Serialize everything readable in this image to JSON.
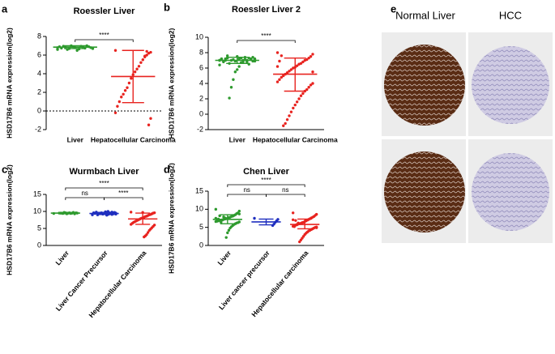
{
  "chart_data": [
    {
      "type": "strip",
      "label": "a",
      "title": "Roessler Liver",
      "ylabel": "HSD17B6 mRNA expression(log2)",
      "ylim": [
        -2,
        8
      ],
      "yticks": [
        -2,
        0,
        2,
        4,
        6,
        8
      ],
      "hline": 0,
      "rotate_labels": false,
      "categories": [
        "Liver",
        "Hepatocellular Carcinoma"
      ],
      "groups": [
        {
          "color": "#2e9a2e",
          "mean": 6.85,
          "error": [
            6.7,
            7.0
          ],
          "values": [
            6.6,
            6.7,
            6.8,
            6.9,
            7.0,
            6.75,
            6.85,
            6.95,
            6.65,
            6.5,
            6.8,
            6.9,
            7.0,
            6.7,
            6.6,
            6.85,
            6.95,
            6.75,
            6.9,
            6.8
          ]
        },
        {
          "color": "#e8231f",
          "mean": 3.7,
          "error": [
            0.9,
            6.5
          ],
          "values": [
            6.5,
            6.3,
            6.2,
            6.0,
            5.9,
            5.5,
            5.2,
            4.8,
            4.5,
            4.2,
            3.9,
            3.5,
            3.0,
            2.5,
            2.2,
            1.8,
            1.5,
            1.0,
            0.5,
            -0.2,
            -0.8,
            -1.5,
            6.4,
            5.8
          ]
        }
      ],
      "comparisons": [
        {
          "between": [
            0,
            1
          ],
          "label": "****"
        }
      ]
    },
    {
      "type": "strip",
      "label": "b",
      "title": "Roessler Liver 2",
      "ylabel": "HSD17B6 mRNA expression(log2)",
      "ylim": [
        -2,
        10
      ],
      "yticks": [
        -2,
        0,
        2,
        4,
        6,
        8,
        10
      ],
      "rotate_labels": false,
      "categories": [
        "Liver",
        "Hepatocellular Carcinoma"
      ],
      "groups": [
        {
          "color": "#2e9a2e",
          "mean": 7.0,
          "error": [
            6.6,
            7.4
          ],
          "values": [
            7.0,
            7.2,
            6.9,
            7.1,
            7.3,
            6.8,
            7.4,
            7.0,
            6.7,
            7.2,
            7.5,
            6.9,
            7.1,
            7.0,
            6.6,
            7.3,
            7.2,
            6.8,
            7.1,
            7.0,
            6.9,
            7.4,
            7.2,
            6.5,
            7.0,
            7.1,
            6.8,
            7.3,
            6.2,
            5.8,
            5.5,
            4.5,
            3.5,
            2.1,
            7.6,
            7.0,
            6.9,
            7.2,
            6.4,
            7.1
          ]
        },
        {
          "color": "#e8231f",
          "mean": 5.2,
          "error": [
            3.0,
            7.3
          ],
          "values": [
            8.0,
            7.8,
            7.5,
            7.3,
            7.1,
            7.0,
            6.8,
            6.6,
            6.5,
            6.3,
            6.1,
            6.0,
            5.8,
            5.6,
            5.4,
            5.2,
            5.0,
            4.8,
            4.5,
            4.2,
            4.0,
            3.8,
            3.5,
            3.2,
            3.0,
            2.7,
            2.4,
            2.0,
            1.6,
            1.2,
            0.8,
            0.3,
            -0.2,
            -0.7,
            -1.2,
            -1.5,
            7.6,
            6.9,
            6.2,
            5.5
          ]
        }
      ],
      "comparisons": [
        {
          "between": [
            0,
            1
          ],
          "label": "****"
        }
      ]
    },
    {
      "type": "strip",
      "label": "c",
      "title": "Wurmbach Liver",
      "ylabel": "HSD17B6 mRNA expression(log2)",
      "ylim": [
        0,
        15
      ],
      "yticks": [
        0,
        5,
        10,
        15
      ],
      "rotate_labels": true,
      "categories": [
        "Liver",
        "Liver Cancer Precursor",
        "Hepatocellular Carcinoma"
      ],
      "groups": [
        {
          "color": "#2e9a2e",
          "mean": 9.5,
          "error": [
            9.3,
            9.7
          ],
          "values": [
            9.4,
            9.5,
            9.6,
            9.3,
            9.7,
            9.5,
            9.4,
            9.6,
            9.5,
            9.3,
            9.6,
            9.7,
            9.4,
            9.5,
            9.5
          ]
        },
        {
          "color": "#1f2fbf",
          "mean": 9.4,
          "error": [
            9.1,
            9.7
          ],
          "values": [
            9.0,
            9.2,
            9.4,
            9.6,
            9.8,
            9.5,
            9.3,
            9.1,
            9.7,
            9.9,
            9.4,
            9.2,
            9.6,
            9.5,
            9.3,
            9.0,
            9.8,
            9.4,
            9.6,
            9.2,
            9.5,
            9.7,
            9.3,
            9.1,
            9.4,
            9.6,
            10.0,
            8.9,
            9.5,
            9.4
          ]
        },
        {
          "color": "#e8231f",
          "mean": 7.8,
          "error": [
            6.2,
            9.5
          ],
          "values": [
            9.8,
            9.6,
            9.5,
            9.3,
            9.1,
            9.0,
            8.8,
            8.6,
            8.5,
            8.3,
            8.1,
            8.0,
            7.8,
            7.6,
            7.4,
            7.2,
            7.0,
            6.8,
            6.5,
            6.2,
            6.0,
            5.6,
            5.2,
            4.8,
            4.4,
            3.8,
            3.2,
            2.8,
            2.5,
            9.7
          ]
        }
      ],
      "comparisons": [
        {
          "between": [
            0,
            1
          ],
          "label": "ns"
        },
        {
          "between": [
            1,
            2
          ],
          "label": "****"
        },
        {
          "between": [
            0,
            2
          ],
          "label": "****"
        }
      ]
    },
    {
      "type": "strip",
      "label": "d",
      "title": "Chen Liver",
      "ylabel": "HSD17B6 mRNA expression(log2)",
      "ylim": [
        0,
        15
      ],
      "yticks": [
        0,
        5,
        10,
        15
      ],
      "rotate_labels": true,
      "categories": [
        "Liver",
        "Liver cancer precursor",
        "Hepatocellular carcinoma"
      ],
      "groups": [
        {
          "color": "#2e9a2e",
          "mean": 7.2,
          "error": [
            6.0,
            8.5
          ],
          "values": [
            10.0,
            9.5,
            9.0,
            8.8,
            8.5,
            8.3,
            8.1,
            8.0,
            7.8,
            7.7,
            7.5,
            7.4,
            7.3,
            7.2,
            7.1,
            7.0,
            6.9,
            6.8,
            6.7,
            6.6,
            6.5,
            6.3,
            6.2,
            6.0,
            5.8,
            5.5,
            5.2,
            4.8,
            4.2,
            3.5,
            2.2,
            7.6,
            7.9,
            7.0,
            6.4,
            8.2,
            7.3,
            6.9,
            7.5,
            8.7
          ]
        },
        {
          "color": "#1f2fbf",
          "mean": 6.5,
          "error": [
            5.7,
            7.3
          ],
          "values": [
            7.5,
            7.2,
            6.8,
            6.4,
            5.9,
            5.5
          ]
        },
        {
          "color": "#e8231f",
          "mean": 5.8,
          "error": [
            4.6,
            7.3
          ],
          "values": [
            9.0,
            8.6,
            8.3,
            8.0,
            7.8,
            7.6,
            7.4,
            7.2,
            7.0,
            6.8,
            6.6,
            6.4,
            6.3,
            6.1,
            6.0,
            5.9,
            5.8,
            5.6,
            5.5,
            5.3,
            5.1,
            5.0,
            4.8,
            4.6,
            4.4,
            4.2,
            4.0,
            3.7,
            3.4,
            3.0,
            2.5,
            2.0,
            1.5,
            1.0,
            6.2,
            5.7,
            6.9,
            5.2,
            7.1,
            4.9
          ]
        }
      ],
      "comparisons": [
        {
          "between": [
            0,
            1
          ],
          "label": "ns"
        },
        {
          "between": [
            1,
            2
          ],
          "label": "ns"
        },
        {
          "between": [
            0,
            2
          ],
          "label": "****"
        }
      ]
    }
  ],
  "panel_e": {
    "label": "e",
    "columns": [
      "Normal Liver",
      "HCC"
    ]
  }
}
